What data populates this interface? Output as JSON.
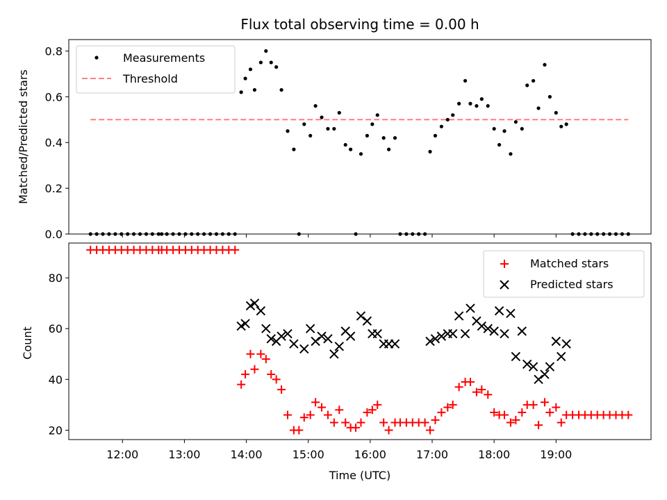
{
  "chart_data": [
    {
      "type": "scatter",
      "title": "Flux total observing time = 0.00 h",
      "xlabel": "",
      "ylabel": "Matched/Predicted stars",
      "ylim": [
        0,
        0.85
      ],
      "yticks": [
        "0.0",
        "0.2",
        "0.4",
        "0.6",
        "0.8"
      ],
      "threshold": 0.5,
      "legend_position": "top-left",
      "series": [
        {
          "name": "Measurements",
          "color": "#000000",
          "marker": "dot",
          "points": [
            [
              "11:29",
              0.0
            ],
            [
              "11:35",
              0.0
            ],
            [
              "11:41",
              0.0
            ],
            [
              "11:47",
              0.0
            ],
            [
              "11:53",
              0.0
            ],
            [
              "11:59",
              0.0
            ],
            [
              "12:05",
              0.0
            ],
            [
              "12:11",
              0.0
            ],
            [
              "12:17",
              0.0
            ],
            [
              "12:23",
              0.0
            ],
            [
              "12:29",
              0.0
            ],
            [
              "12:35",
              0.0
            ],
            [
              "12:38",
              0.0
            ],
            [
              "12:43",
              0.0
            ],
            [
              "12:49",
              0.0
            ],
            [
              "12:55",
              0.0
            ],
            [
              "13:01",
              0.0
            ],
            [
              "13:07",
              0.0
            ],
            [
              "13:13",
              0.0
            ],
            [
              "13:19",
              0.0
            ],
            [
              "13:25",
              0.0
            ],
            [
              "13:31",
              0.0
            ],
            [
              "13:37",
              0.0
            ],
            [
              "13:43",
              0.0
            ],
            [
              "13:49",
              0.0
            ],
            [
              "13:55",
              0.62
            ],
            [
              "13:59",
              0.68
            ],
            [
              "14:04",
              0.72
            ],
            [
              "14:08",
              0.63
            ],
            [
              "14:14",
              0.75
            ],
            [
              "14:19",
              0.8
            ],
            [
              "14:24",
              0.75
            ],
            [
              "14:29",
              0.73
            ],
            [
              "14:34",
              0.63
            ],
            [
              "14:40",
              0.45
            ],
            [
              "14:46",
              0.37
            ],
            [
              "14:51",
              0.0
            ],
            [
              "14:56",
              0.48
            ],
            [
              "15:02",
              0.43
            ],
            [
              "15:07",
              0.56
            ],
            [
              "15:13",
              0.51
            ],
            [
              "15:19",
              0.46
            ],
            [
              "15:25",
              0.46
            ],
            [
              "15:30",
              0.53
            ],
            [
              "15:36",
              0.39
            ],
            [
              "15:41",
              0.37
            ],
            [
              "15:46",
              0.0
            ],
            [
              "15:51",
              0.35
            ],
            [
              "15:57",
              0.43
            ],
            [
              "16:02",
              0.48
            ],
            [
              "16:07",
              0.52
            ],
            [
              "16:13",
              0.42
            ],
            [
              "16:18",
              0.37
            ],
            [
              "16:24",
              0.42
            ],
            [
              "16:29",
              0.0
            ],
            [
              "16:35",
              0.0
            ],
            [
              "16:41",
              0.0
            ],
            [
              "16:47",
              0.0
            ],
            [
              "16:53",
              0.0
            ],
            [
              "16:58",
              0.36
            ],
            [
              "17:03",
              0.43
            ],
            [
              "17:09",
              0.47
            ],
            [
              "17:15",
              0.5
            ],
            [
              "17:20",
              0.52
            ],
            [
              "17:26",
              0.57
            ],
            [
              "17:32",
              0.67
            ],
            [
              "17:37",
              0.57
            ],
            [
              "17:43",
              0.56
            ],
            [
              "17:48",
              0.59
            ],
            [
              "17:54",
              0.56
            ],
            [
              "18:00",
              0.46
            ],
            [
              "18:05",
              0.39
            ],
            [
              "18:10",
              0.45
            ],
            [
              "18:16",
              0.35
            ],
            [
              "18:21",
              0.49
            ],
            [
              "18:27",
              0.46
            ],
            [
              "18:32",
              0.65
            ],
            [
              "18:38",
              0.67
            ],
            [
              "18:43",
              0.55
            ],
            [
              "18:49",
              0.74
            ],
            [
              "18:54",
              0.6
            ],
            [
              "19:00",
              0.53
            ],
            [
              "19:05",
              0.47
            ],
            [
              "19:10",
              0.48
            ],
            [
              "19:16",
              0.0
            ],
            [
              "19:22",
              0.0
            ],
            [
              "19:28",
              0.0
            ],
            [
              "19:34",
              0.0
            ],
            [
              "19:40",
              0.0
            ],
            [
              "19:46",
              0.0
            ],
            [
              "19:52",
              0.0
            ],
            [
              "19:58",
              0.0
            ],
            [
              "20:04",
              0.0
            ],
            [
              "20:10",
              0.0
            ]
          ]
        },
        {
          "name": "Threshold",
          "color": "#ff7f7f",
          "style": "dashed",
          "points": [
            [
              "11:29",
              0.5
            ],
            [
              "20:10",
              0.5
            ]
          ]
        }
      ]
    },
    {
      "type": "scatter",
      "title": "",
      "xlabel": "Time (UTC)",
      "ylabel": "Count",
      "ylim": [
        16.3,
        93.7
      ],
      "yticks": [
        "20",
        "40",
        "60",
        "80"
      ],
      "xticks": [
        "12:00",
        "13:00",
        "14:00",
        "15:00",
        "16:00",
        "17:00",
        "18:00",
        "19:00"
      ],
      "legend_position": "top-right",
      "series": [
        {
          "name": "Matched stars",
          "color": "#ff0000",
          "marker": "plus",
          "points": [
            [
              "11:29",
              91
            ],
            [
              "11:35",
              91
            ],
            [
              "11:41",
              91
            ],
            [
              "11:47",
              91
            ],
            [
              "11:53",
              91
            ],
            [
              "11:59",
              91
            ],
            [
              "12:05",
              91
            ],
            [
              "12:11",
              91
            ],
            [
              "12:17",
              91
            ],
            [
              "12:23",
              91
            ],
            [
              "12:29",
              91
            ],
            [
              "12:35",
              91
            ],
            [
              "12:38",
              91
            ],
            [
              "12:43",
              91
            ],
            [
              "12:49",
              91
            ],
            [
              "12:55",
              91
            ],
            [
              "13:01",
              91
            ],
            [
              "13:07",
              91
            ],
            [
              "13:13",
              91
            ],
            [
              "13:19",
              91
            ],
            [
              "13:25",
              91
            ],
            [
              "13:31",
              91
            ],
            [
              "13:37",
              91
            ],
            [
              "13:43",
              91
            ],
            [
              "13:49",
              91
            ],
            [
              "13:55",
              38
            ],
            [
              "13:59",
              42
            ],
            [
              "14:04",
              50
            ],
            [
              "14:08",
              44
            ],
            [
              "14:14",
              50
            ],
            [
              "14:19",
              48
            ],
            [
              "14:24",
              42
            ],
            [
              "14:29",
              40
            ],
            [
              "14:34",
              36
            ],
            [
              "14:40",
              26
            ],
            [
              "14:46",
              20
            ],
            [
              "14:51",
              20
            ],
            [
              "14:56",
              25
            ],
            [
              "15:02",
              26
            ],
            [
              "15:07",
              31
            ],
            [
              "15:13",
              29
            ],
            [
              "15:19",
              26
            ],
            [
              "15:25",
              23
            ],
            [
              "15:30",
              28
            ],
            [
              "15:36",
              23
            ],
            [
              "15:41",
              21
            ],
            [
              "15:46",
              21
            ],
            [
              "15:51",
              23
            ],
            [
              "15:57",
              27
            ],
            [
              "16:02",
              28
            ],
            [
              "16:07",
              30
            ],
            [
              "16:13",
              23
            ],
            [
              "16:18",
              20
            ],
            [
              "16:24",
              23
            ],
            [
              "16:29",
              23
            ],
            [
              "16:35",
              23
            ],
            [
              "16:41",
              23
            ],
            [
              "16:47",
              23
            ],
            [
              "16:53",
              23
            ],
            [
              "16:58",
              20
            ],
            [
              "17:03",
              24
            ],
            [
              "17:09",
              27
            ],
            [
              "17:15",
              29
            ],
            [
              "17:20",
              30
            ],
            [
              "17:26",
              37
            ],
            [
              "17:32",
              39
            ],
            [
              "17:37",
              39
            ],
            [
              "17:43",
              35
            ],
            [
              "17:48",
              36
            ],
            [
              "17:54",
              34
            ],
            [
              "18:00",
              27
            ],
            [
              "18:05",
              26
            ],
            [
              "18:10",
              26
            ],
            [
              "18:16",
              23
            ],
            [
              "18:21",
              24
            ],
            [
              "18:27",
              27
            ],
            [
              "18:32",
              30
            ],
            [
              "18:38",
              30
            ],
            [
              "18:43",
              22
            ],
            [
              "18:49",
              31
            ],
            [
              "18:54",
              27
            ],
            [
              "19:00",
              29
            ],
            [
              "19:05",
              23
            ],
            [
              "19:10",
              26
            ],
            [
              "19:16",
              26
            ],
            [
              "19:22",
              26
            ],
            [
              "19:28",
              26
            ],
            [
              "19:34",
              26
            ],
            [
              "19:40",
              26
            ],
            [
              "19:46",
              26
            ],
            [
              "19:52",
              26
            ],
            [
              "19:58",
              26
            ],
            [
              "20:04",
              26
            ],
            [
              "20:10",
              26
            ]
          ]
        },
        {
          "name": "Predicted stars",
          "color": "#000000",
          "marker": "x",
          "points": [
            [
              "13:55",
              61
            ],
            [
              "13:59",
              62
            ],
            [
              "14:04",
              69
            ],
            [
              "14:08",
              70
            ],
            [
              "14:14",
              67
            ],
            [
              "14:19",
              60
            ],
            [
              "14:24",
              56
            ],
            [
              "14:29",
              55
            ],
            [
              "14:34",
              57
            ],
            [
              "14:40",
              58
            ],
            [
              "14:46",
              54
            ],
            [
              "14:56",
              52
            ],
            [
              "15:02",
              60
            ],
            [
              "15:07",
              55
            ],
            [
              "15:13",
              57
            ],
            [
              "15:19",
              56
            ],
            [
              "15:25",
              50
            ],
            [
              "15:30",
              53
            ],
            [
              "15:36",
              59
            ],
            [
              "15:41",
              57
            ],
            [
              "15:51",
              65
            ],
            [
              "15:57",
              63
            ],
            [
              "16:02",
              58
            ],
            [
              "16:07",
              58
            ],
            [
              "16:13",
              54
            ],
            [
              "16:18",
              54
            ],
            [
              "16:24",
              54
            ],
            [
              "16:58",
              55
            ],
            [
              "17:03",
              56
            ],
            [
              "17:09",
              57
            ],
            [
              "17:15",
              58
            ],
            [
              "17:20",
              58
            ],
            [
              "17:26",
              65
            ],
            [
              "17:32",
              58
            ],
            [
              "17:37",
              68
            ],
            [
              "17:43",
              63
            ],
            [
              "17:48",
              61
            ],
            [
              "17:54",
              60
            ],
            [
              "18:00",
              59
            ],
            [
              "18:05",
              67
            ],
            [
              "18:10",
              58
            ],
            [
              "18:16",
              66
            ],
            [
              "18:21",
              49
            ],
            [
              "18:27",
              59
            ],
            [
              "18:32",
              46
            ],
            [
              "18:38",
              45
            ],
            [
              "18:43",
              40
            ],
            [
              "18:49",
              42
            ],
            [
              "18:54",
              45
            ],
            [
              "19:00",
              55
            ],
            [
              "19:05",
              49
            ],
            [
              "19:10",
              54
            ]
          ]
        }
      ]
    }
  ]
}
